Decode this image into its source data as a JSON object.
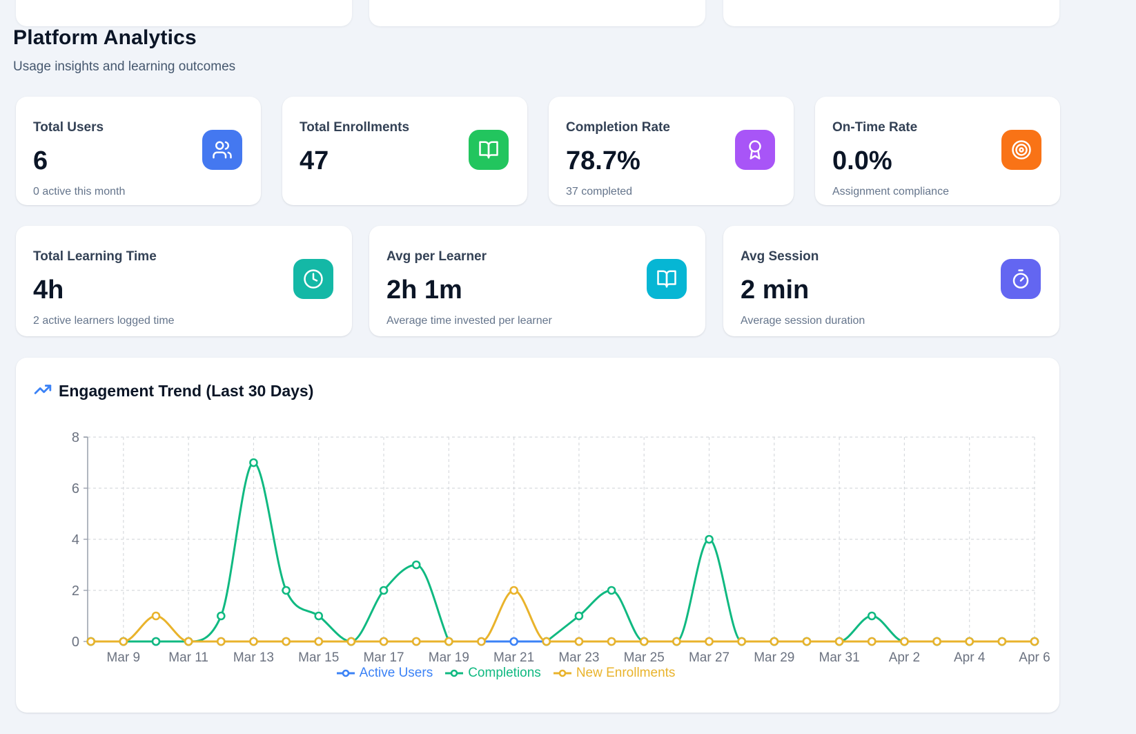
{
  "header": {
    "title": "Platform Analytics",
    "subtitle": "Usage insights and learning outcomes"
  },
  "stat_rows": [
    {
      "cards": [
        {
          "label": "Total Users",
          "value": "6",
          "subtext": "0 active this month",
          "icon": "users-icon",
          "icon_bg": "#4478f0"
        },
        {
          "label": "Total Enrollments",
          "value": "47",
          "subtext": "",
          "icon": "book-open-icon",
          "icon_bg": "#22c55e"
        },
        {
          "label": "Completion Rate",
          "value": "78.7%",
          "subtext": "37 completed",
          "icon": "award-icon",
          "icon_bg": "#a855f7"
        },
        {
          "label": "On-Time Rate",
          "value": "0.0%",
          "subtext": "Assignment compliance",
          "icon": "target-icon",
          "icon_bg": "#f97316"
        }
      ]
    },
    {
      "cards": [
        {
          "label": "Total Learning Time",
          "value": "4h",
          "subtext": "2 active learners logged time",
          "icon": "clock-icon",
          "icon_bg": "#14b8a6"
        },
        {
          "label": "Avg per Learner",
          "value": "2h 1m",
          "subtext": "Average time invested per learner",
          "icon": "book-open-icon",
          "icon_bg": "#06b6d4"
        },
        {
          "label": "Avg Session",
          "value": "2 min",
          "subtext": "Average session duration",
          "icon": "timer-icon",
          "icon_bg": "#6366f1"
        }
      ]
    }
  ],
  "chart": {
    "title": "Engagement Trend (Last 30 Days)",
    "title_icon": "trending-up-icon",
    "title_icon_color": "#3b82f6"
  },
  "chart_data": {
    "type": "line",
    "curve": "monotone",
    "marker": "hollow-circle",
    "grid": "dashed",
    "legend_position": "bottom",
    "x": [
      "Mar 8",
      "Mar 9",
      "Mar 10",
      "Mar 11",
      "Mar 12",
      "Mar 13",
      "Mar 14",
      "Mar 15",
      "Mar 16",
      "Mar 17",
      "Mar 18",
      "Mar 19",
      "Mar 20",
      "Mar 21",
      "Mar 22",
      "Mar 23",
      "Mar 24",
      "Mar 25",
      "Mar 26",
      "Mar 27",
      "Mar 28",
      "Mar 29",
      "Mar 30",
      "Mar 31",
      "Apr 1",
      "Apr 2",
      "Apr 3",
      "Apr 4",
      "Apr 5",
      "Apr 6"
    ],
    "x_tick_labels": [
      "Mar 9",
      "Mar 11",
      "Mar 13",
      "Mar 15",
      "Mar 17",
      "Mar 19",
      "Mar 21",
      "Mar 23",
      "Mar 25",
      "Mar 27",
      "Mar 29",
      "Mar 31",
      "Apr 2",
      "Apr 4",
      "Apr 6"
    ],
    "ylim": [
      0,
      8
    ],
    "yticks": [
      0,
      2,
      4,
      6,
      8
    ],
    "series": [
      {
        "name": "Active Users",
        "color": "#3b82f6",
        "values": [
          0,
          0,
          0,
          0,
          0,
          0,
          0,
          0,
          0,
          0,
          0,
          0,
          0,
          0,
          0,
          0,
          0,
          0,
          0,
          0,
          0,
          0,
          0,
          0,
          0,
          0,
          0,
          0,
          0,
          0
        ]
      },
      {
        "name": "Completions",
        "color": "#10b981",
        "values": [
          0,
          0,
          0,
          0,
          1,
          7,
          2,
          1,
          0,
          2,
          3,
          0,
          null,
          null,
          0,
          1,
          2,
          0,
          0,
          4,
          0,
          0,
          0,
          0,
          1,
          0,
          0,
          0,
          0,
          0
        ]
      },
      {
        "name": "New Enrollments",
        "color": "#e9b32b",
        "values": [
          0,
          0,
          1,
          0,
          0,
          0,
          0,
          0,
          0,
          0,
          0,
          0,
          0,
          2,
          0,
          0,
          0,
          0,
          0,
          0,
          0,
          0,
          0,
          0,
          0,
          0,
          0,
          0,
          0,
          0
        ]
      }
    ],
    "axis_color": "#9ca3af",
    "grid_color": "#d7dade",
    "tick_label_color": "#6b7280"
  }
}
